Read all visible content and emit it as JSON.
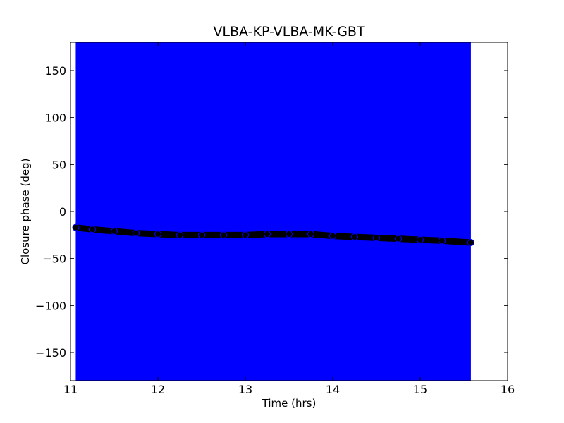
{
  "chart_data": {
    "type": "scatter",
    "title": "VLBA-KP-VLBA-MK-GBT",
    "xlabel": "Time (hrs)",
    "ylabel": "Closure phase (deg)",
    "xlim": [
      11,
      16
    ],
    "ylim": [
      -180,
      180
    ],
    "xticks": [
      11,
      12,
      13,
      14,
      15,
      16
    ],
    "yticks": [
      -150,
      -100,
      -50,
      0,
      50,
      100,
      150
    ],
    "xtick_labels": [
      "11",
      "12",
      "13",
      "14",
      "15",
      "16"
    ],
    "ytick_labels": [
      "−150",
      "−100",
      "−50",
      "0",
      "50",
      "100",
      "150"
    ],
    "grid": false,
    "error_band": {
      "x_range": [
        11.06,
        15.58
      ],
      "y_range": [
        -180,
        180
      ],
      "color": "#0000ff"
    },
    "series": [
      {
        "color": "#000000",
        "edge_color": "#0000ff",
        "x": [
          11.06,
          11.25,
          11.5,
          11.75,
          12.0,
          12.25,
          12.5,
          12.75,
          13.0,
          13.25,
          13.5,
          13.75,
          14.0,
          14.25,
          14.5,
          14.75,
          15.0,
          15.25,
          15.58
        ],
        "y": [
          -17,
          -19,
          -21,
          -23,
          -24,
          -25,
          -25,
          -25,
          -25,
          -24,
          -24,
          -24,
          -26,
          -27,
          -28,
          -29,
          -30,
          -31,
          -33
        ]
      }
    ]
  }
}
